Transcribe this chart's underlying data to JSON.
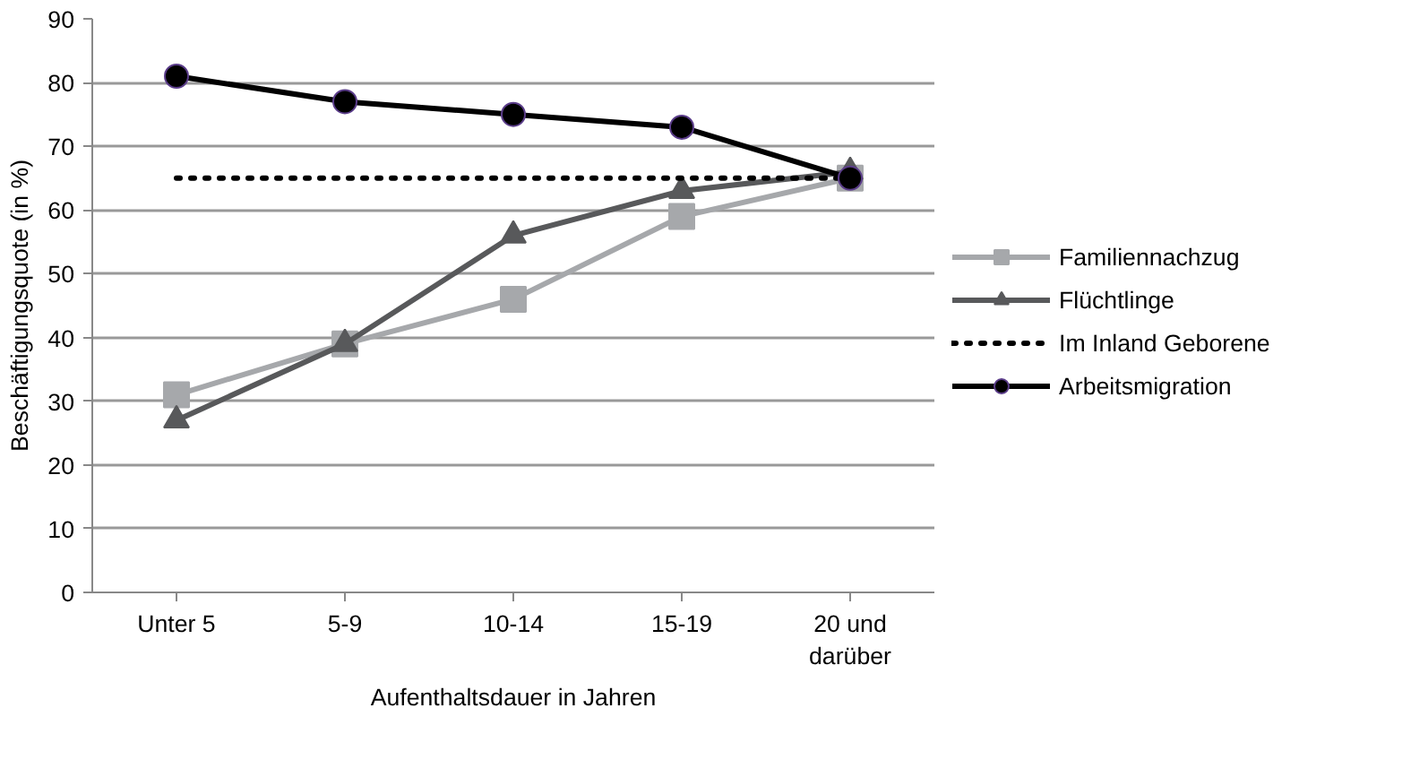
{
  "chart_data": {
    "type": "line",
    "xlabel": "Aufenthaltsdauer in Jahren",
    "ylabel": "Beschäftigungsquote (in %)",
    "categories": [
      "Unter 5",
      "5-9",
      "10-14",
      "15-19",
      "20 und\ndarüber"
    ],
    "ylim": [
      0,
      90
    ],
    "yticks": [
      0,
      10,
      20,
      30,
      40,
      50,
      60,
      70,
      80,
      90
    ],
    "grid": "y",
    "legend": "right",
    "series": [
      {
        "name": "Familiennachzug",
        "color": "#a6a8ab",
        "marker": "square",
        "line_style": "solid",
        "values": [
          31,
          39,
          46,
          59,
          65
        ]
      },
      {
        "name": "Flüchtlinge",
        "color": "#58595b",
        "marker": "triangle",
        "line_style": "solid",
        "values": [
          27,
          39,
          56,
          63,
          66
        ]
      },
      {
        "name": "Im Inland Geborene",
        "color": "#000000",
        "marker": "none",
        "line_style": "dotted",
        "values": [
          65,
          65,
          65,
          65,
          65
        ]
      },
      {
        "name": "Arbeitsmigration",
        "color": "#000000",
        "marker": "circle",
        "line_style": "solid",
        "values": [
          81,
          77,
          75,
          73,
          65
        ]
      }
    ]
  }
}
